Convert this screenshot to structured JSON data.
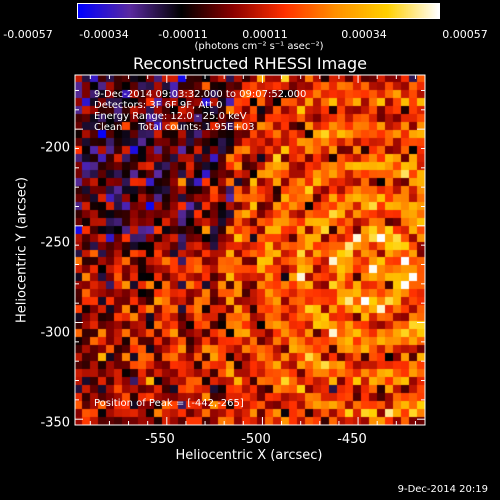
{
  "chart_data": {
    "type": "heatmap",
    "title": "Reconstructed RHESSI Image",
    "xlabel": "Heliocentric X (arcsec)",
    "ylabel": "Heliocentric Y (arcsec)",
    "xlim": [
      -598,
      -415
    ],
    "ylim": [
      -353,
      -172
    ],
    "x_ticks": [
      "-550",
      "-500",
      "-450"
    ],
    "x_tick_values": [
      -550,
      -500,
      -450
    ],
    "y_ticks": [
      "-200",
      "-250",
      "-300",
      "-350"
    ],
    "y_tick_values": [
      -200,
      -250,
      -300,
      -350
    ],
    "colorbar": {
      "ticks": [
        "-0.00057",
        "-0.00034",
        "-0.00011",
        "0.00011",
        "0.00034",
        "0.00057"
      ],
      "tick_values": [
        -0.00057,
        -0.00034,
        -0.00011,
        0.00011,
        0.00034,
        0.00057
      ],
      "range": [
        -0.00057,
        0.00057
      ],
      "unit": "(photons cm⁻² s⁻¹ asec⁻²)"
    },
    "annotations": [
      "9-Dec-2014 09:03:32.000 to 09:07:52.000",
      "Detectors: 3F 6F 9F, Att 0",
      "Energy Range: 12.0 - 25.0 keV",
      "Clean     Total counts: 1.95E+03"
    ],
    "peak_label": "Position of Peak = [-442,-265]",
    "peak": [
      -442,
      -265
    ],
    "colors": {
      "background": "#000000",
      "scale": [
        "#0000ff",
        "#5a2aa0",
        "#000000",
        "#8a0000",
        "#ff3000",
        "#ff9000",
        "#ffd000",
        "#ffffff"
      ]
    }
  },
  "footer_timestamp": "9-Dec-2014 20:19"
}
